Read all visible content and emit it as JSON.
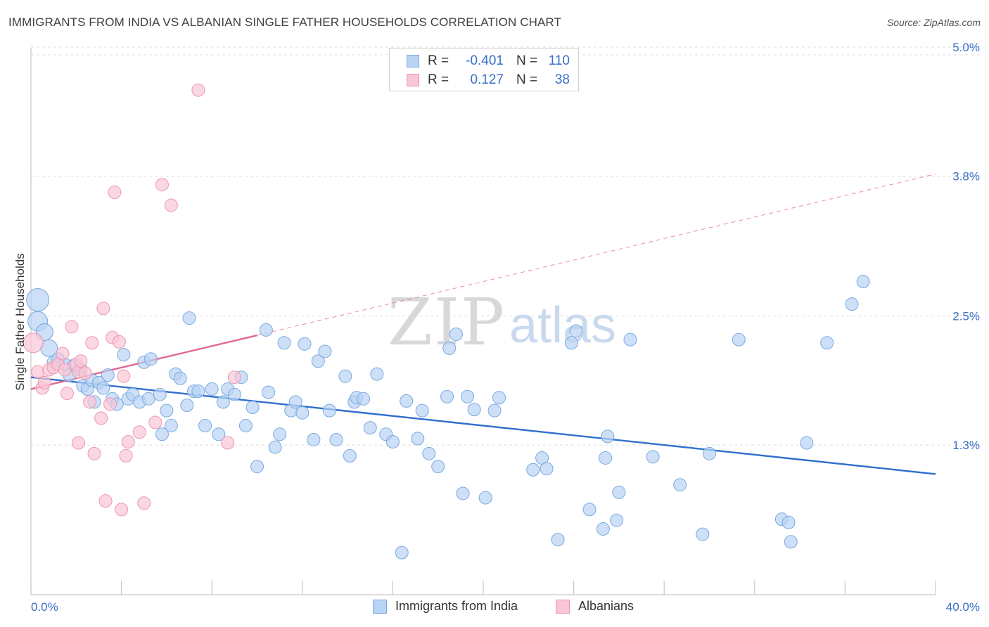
{
  "title": "IMMIGRANTS FROM INDIA VS ALBANIAN SINGLE FATHER HOUSEHOLDS CORRELATION CHART",
  "source": "Source: ZipAtlas.com",
  "watermark": {
    "zip": "ZIP",
    "atlas": "atlas"
  },
  "legend": {
    "rows": [
      {
        "r_label": "R =",
        "r_value": "-0.401",
        "n_label": "N =",
        "n_value": "110"
      },
      {
        "r_label": "R =",
        "r_value": "0.127",
        "n_label": "N =",
        "n_value": "38"
      }
    ]
  },
  "colors": {
    "blue_fill": "#b8d3f3",
    "blue_stroke": "#7aa9e0",
    "blue_line": "#2f6fce",
    "pink_fill": "#f9c6d5",
    "pink_stroke": "#ec97b2",
    "pink_line": "#e26692",
    "axis_text": "#3a6fc6",
    "grid": "#dcdcdc"
  },
  "chart_data": {
    "type": "scatter",
    "title": "IMMIGRANTS FROM INDIA VS ALBANIAN SINGLE FATHER HOUSEHOLDS CORRELATION CHART",
    "xlabel": "",
    "ylabel": "Single Father Households",
    "xlim": [
      0,
      40
    ],
    "ylim": [
      0,
      5.2
    ],
    "x_tick_labels": [
      "0.0%",
      "40.0%"
    ],
    "y_ticks": [
      1.3,
      2.5,
      3.8,
      5.0
    ],
    "y_tick_labels": [
      "1.3%",
      "2.5%",
      "3.8%",
      "5.0%"
    ],
    "grid": true,
    "legend_position": "top-center",
    "series": [
      {
        "name": "Immigrants from India",
        "color": "#b8d3f3",
        "points": [
          [
            0.3,
            2.65,
            16
          ],
          [
            0.3,
            2.45,
            14
          ],
          [
            0.6,
            2.35,
            12
          ],
          [
            0.8,
            2.2,
            12
          ],
          [
            1.0,
            2.07,
            9
          ],
          [
            1.2,
            2.1,
            9
          ],
          [
            1.5,
            2.05,
            9
          ],
          [
            1.7,
            1.95,
            9
          ],
          [
            1.9,
            2.04,
            9
          ],
          [
            2.2,
            2.0,
            9
          ],
          [
            2.3,
            1.85,
            9
          ],
          [
            2.5,
            1.82,
            9
          ],
          [
            2.7,
            1.9,
            9
          ],
          [
            2.8,
            1.7,
            9
          ],
          [
            3.0,
            1.88,
            9
          ],
          [
            3.2,
            1.83,
            9
          ],
          [
            3.4,
            1.95,
            9
          ],
          [
            3.6,
            1.73,
            9
          ],
          [
            3.8,
            1.68,
            9
          ],
          [
            4.1,
            2.14,
            9
          ],
          [
            4.3,
            1.73,
            9
          ],
          [
            4.5,
            1.77,
            9
          ],
          [
            4.8,
            1.7,
            9
          ],
          [
            5.0,
            2.07,
            9
          ],
          [
            5.2,
            1.73,
            9
          ],
          [
            5.3,
            2.1,
            9
          ],
          [
            5.7,
            1.77,
            9
          ],
          [
            5.8,
            1.4,
            9
          ],
          [
            6.0,
            1.62,
            9
          ],
          [
            6.2,
            1.48,
            9
          ],
          [
            6.4,
            1.96,
            9
          ],
          [
            6.6,
            1.92,
            9
          ],
          [
            6.9,
            1.67,
            9
          ],
          [
            7.0,
            2.48,
            9
          ],
          [
            7.2,
            1.8,
            9
          ],
          [
            7.4,
            1.8,
            9
          ],
          [
            7.7,
            1.48,
            9
          ],
          [
            8.0,
            1.82,
            9
          ],
          [
            8.3,
            1.4,
            9
          ],
          [
            8.5,
            1.7,
            9
          ],
          [
            8.7,
            1.82,
            9
          ],
          [
            9.0,
            1.77,
            9
          ],
          [
            9.3,
            1.93,
            9
          ],
          [
            9.5,
            1.48,
            9
          ],
          [
            9.8,
            1.65,
            9
          ],
          [
            10.0,
            1.1,
            9
          ],
          [
            10.4,
            2.37,
            9
          ],
          [
            10.5,
            1.79,
            9
          ],
          [
            10.8,
            1.28,
            9
          ],
          [
            11.0,
            1.4,
            9
          ],
          [
            11.2,
            2.25,
            9
          ],
          [
            11.5,
            1.62,
            9
          ],
          [
            11.7,
            1.7,
            9
          ],
          [
            12.0,
            1.6,
            9
          ],
          [
            12.1,
            2.24,
            9
          ],
          [
            12.5,
            1.35,
            9
          ],
          [
            12.7,
            2.08,
            9
          ],
          [
            13.0,
            2.17,
            9
          ],
          [
            13.2,
            1.62,
            9
          ],
          [
            13.5,
            1.35,
            9
          ],
          [
            13.9,
            1.94,
            9
          ],
          [
            14.1,
            1.2,
            9
          ],
          [
            14.3,
            1.7,
            9
          ],
          [
            14.4,
            1.74,
            9
          ],
          [
            14.7,
            1.73,
            9
          ],
          [
            15.0,
            1.46,
            9
          ],
          [
            15.3,
            1.96,
            9
          ],
          [
            15.7,
            1.4,
            9
          ],
          [
            16.0,
            1.33,
            9
          ],
          [
            16.4,
            0.3,
            9
          ],
          [
            16.6,
            1.71,
            9
          ],
          [
            17.1,
            1.36,
            9
          ],
          [
            17.3,
            1.62,
            9
          ],
          [
            17.6,
            1.22,
            9
          ],
          [
            18.0,
            1.1,
            9
          ],
          [
            18.4,
            1.75,
            9
          ],
          [
            18.5,
            2.2,
            9
          ],
          [
            18.8,
            2.33,
            9
          ],
          [
            19.1,
            0.85,
            9
          ],
          [
            19.3,
            1.75,
            9
          ],
          [
            19.6,
            1.63,
            9
          ],
          [
            20.1,
            0.81,
            9
          ],
          [
            20.5,
            1.62,
            9
          ],
          [
            20.7,
            1.74,
            9
          ],
          [
            22.2,
            1.07,
            9
          ],
          [
            22.6,
            1.18,
            9
          ],
          [
            22.8,
            1.08,
            9
          ],
          [
            23.3,
            0.42,
            9
          ],
          [
            23.9,
            2.25,
            9
          ],
          [
            24.1,
            2.36,
            9
          ],
          [
            24.7,
            0.7,
            9
          ],
          [
            25.3,
            0.52,
            9
          ],
          [
            25.4,
            1.18,
            9
          ],
          [
            25.5,
            1.38,
            9
          ],
          [
            25.9,
            0.6,
            9
          ],
          [
            26.0,
            0.86,
            9
          ],
          [
            26.5,
            2.28,
            9
          ],
          [
            27.5,
            1.19,
            9
          ],
          [
            28.7,
            0.93,
            9
          ],
          [
            29.7,
            0.47,
            9
          ],
          [
            30.0,
            1.22,
            9
          ],
          [
            31.3,
            2.28,
            9
          ],
          [
            33.2,
            0.61,
            9
          ],
          [
            33.5,
            0.58,
            9
          ],
          [
            33.6,
            0.4,
            9
          ],
          [
            34.3,
            1.32,
            9
          ],
          [
            35.2,
            2.25,
            9
          ],
          [
            36.3,
            2.61,
            9
          ],
          [
            36.8,
            2.82,
            9
          ]
        ]
      },
      {
        "name": "Albanians",
        "color": "#f9c6d5",
        "points": [
          [
            0.1,
            2.25,
            14
          ],
          [
            0.3,
            1.98,
            9
          ],
          [
            0.5,
            1.83,
            9
          ],
          [
            0.6,
            1.88,
            9
          ],
          [
            0.8,
            2.0,
            9
          ],
          [
            1.0,
            2.02,
            9
          ],
          [
            1.2,
            2.05,
            9
          ],
          [
            1.4,
            2.15,
            9
          ],
          [
            1.5,
            2.0,
            9
          ],
          [
            1.6,
            1.78,
            9
          ],
          [
            1.8,
            2.4,
            9
          ],
          [
            2.0,
            2.05,
            9
          ],
          [
            2.1,
            1.98,
            9
          ],
          [
            2.2,
            2.08,
            9
          ],
          [
            2.1,
            1.32,
            9
          ],
          [
            2.4,
            1.97,
            9
          ],
          [
            2.6,
            1.7,
            9
          ],
          [
            2.7,
            2.25,
            9
          ],
          [
            2.8,
            1.22,
            9
          ],
          [
            3.1,
            1.55,
            9
          ],
          [
            3.2,
            2.57,
            9
          ],
          [
            3.3,
            0.78,
            9
          ],
          [
            3.5,
            1.68,
            9
          ],
          [
            3.6,
            2.3,
            9
          ],
          [
            3.7,
            3.65,
            9
          ],
          [
            3.9,
            2.26,
            9
          ],
          [
            4.0,
            0.7,
            9
          ],
          [
            4.1,
            1.94,
            9
          ],
          [
            4.2,
            1.2,
            9
          ],
          [
            4.3,
            1.33,
            9
          ],
          [
            4.8,
            1.42,
            9
          ],
          [
            5.0,
            0.76,
            9
          ],
          [
            5.5,
            1.51,
            9
          ],
          [
            5.8,
            3.72,
            9
          ],
          [
            6.2,
            3.53,
            9
          ],
          [
            7.4,
            4.6,
            9
          ],
          [
            8.7,
            1.32,
            9
          ],
          [
            9.0,
            1.93,
            9
          ]
        ]
      }
    ],
    "trend_lines": [
      {
        "series": "Immigrants from India",
        "x": [
          0,
          40
        ],
        "y": [
          1.93,
          1.03
        ],
        "style": "solid"
      },
      {
        "series": "Albanians",
        "x": [
          0,
          10
        ],
        "y": [
          1.82,
          2.32
        ],
        "style": "solid"
      },
      {
        "series": "Albanians",
        "x": [
          10,
          40
        ],
        "y": [
          2.32,
          3.82
        ],
        "style": "dashed"
      }
    ]
  },
  "bottom_legend": [
    {
      "label": "Immigrants from India"
    },
    {
      "label": "Albanians"
    }
  ]
}
